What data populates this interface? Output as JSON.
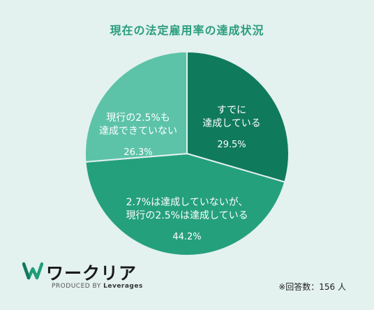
{
  "chart_data": {
    "type": "pie",
    "title": "現在の法定雇用率の達成状況",
    "slices": [
      {
        "label": "すでに\n達成している",
        "value": 29.5,
        "value_label": "29.5%",
        "color": "#107a5c"
      },
      {
        "label": "2.7%は達成していないが、\n現行の2.5%は達成している",
        "value": 44.2,
        "value_label": "44.2%",
        "color": "#25a07c"
      },
      {
        "label": "現行の2.5%も\n達成できていない",
        "value": 26.3,
        "value_label": "26.3%",
        "color": "#5cc3a8"
      }
    ],
    "start_angle": "12 o'clock",
    "direction": "clockwise"
  },
  "colors": {
    "title": "#2a9d7c",
    "background": "#e3f1ef",
    "slice_divider": "#e3f1ef"
  },
  "logo": {
    "wordmark": "ワークリア",
    "tagline_prefix": "PRODUCED BY",
    "tagline_brand": "Leverages",
    "icon": "w-mark-icon"
  },
  "footnote": "※回答数：156 人"
}
